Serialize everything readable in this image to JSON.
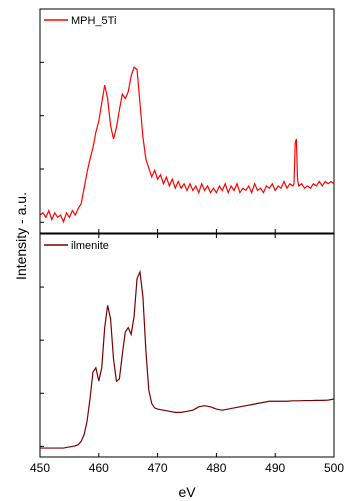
{
  "chart_data": {
    "type": "line",
    "xlabel": "eV",
    "ylabel": "Intensity - a.u.",
    "xlim": [
      450,
      500
    ],
    "xticks": [
      "450",
      "460",
      "470",
      "480",
      "490",
      "500"
    ],
    "grid": false,
    "panels": [
      {
        "legend_label": "MPH_5Ti",
        "legend_position": "top-left",
        "color": "#ff0000",
        "ylim": [
          0,
          1
        ],
        "points": [
          [
            450.0,
            0.08
          ],
          [
            450.5,
            0.09
          ],
          [
            451.0,
            0.07
          ],
          [
            451.5,
            0.1
          ],
          [
            452.0,
            0.06
          ],
          [
            452.5,
            0.09
          ],
          [
            453.0,
            0.07
          ],
          [
            453.5,
            0.08
          ],
          [
            454.0,
            0.05
          ],
          [
            454.5,
            0.09
          ],
          [
            455.0,
            0.07
          ],
          [
            455.5,
            0.1
          ],
          [
            456.0,
            0.08
          ],
          [
            456.5,
            0.11
          ],
          [
            457.0,
            0.13
          ],
          [
            457.5,
            0.2
          ],
          [
            458.0,
            0.27
          ],
          [
            458.5,
            0.33
          ],
          [
            459.0,
            0.38
          ],
          [
            459.5,
            0.45
          ],
          [
            460.0,
            0.5
          ],
          [
            460.5,
            0.58
          ],
          [
            461.0,
            0.66
          ],
          [
            461.5,
            0.6
          ],
          [
            462.0,
            0.48
          ],
          [
            462.5,
            0.42
          ],
          [
            463.0,
            0.47
          ],
          [
            463.5,
            0.55
          ],
          [
            464.0,
            0.62
          ],
          [
            464.5,
            0.6
          ],
          [
            465.0,
            0.63
          ],
          [
            465.5,
            0.7
          ],
          [
            466.0,
            0.74
          ],
          [
            466.5,
            0.73
          ],
          [
            467.0,
            0.58
          ],
          [
            467.5,
            0.43
          ],
          [
            468.0,
            0.33
          ],
          [
            468.5,
            0.29
          ],
          [
            469.0,
            0.25
          ],
          [
            469.5,
            0.28
          ],
          [
            470.0,
            0.24
          ],
          [
            470.5,
            0.26
          ],
          [
            471.0,
            0.22
          ],
          [
            471.5,
            0.25
          ],
          [
            472.0,
            0.21
          ],
          [
            472.5,
            0.24
          ],
          [
            473.0,
            0.2
          ],
          [
            473.5,
            0.23
          ],
          [
            474.0,
            0.2
          ],
          [
            474.5,
            0.22
          ],
          [
            475.0,
            0.19
          ],
          [
            475.5,
            0.22
          ],
          [
            476.0,
            0.19
          ],
          [
            476.5,
            0.21
          ],
          [
            477.0,
            0.18
          ],
          [
            477.5,
            0.22
          ],
          [
            478.0,
            0.19
          ],
          [
            478.5,
            0.21
          ],
          [
            479.0,
            0.18
          ],
          [
            479.5,
            0.2
          ],
          [
            480.0,
            0.18
          ],
          [
            480.5,
            0.21
          ],
          [
            481.0,
            0.19
          ],
          [
            481.5,
            0.22
          ],
          [
            482.0,
            0.18
          ],
          [
            482.5,
            0.21
          ],
          [
            483.0,
            0.19
          ],
          [
            483.5,
            0.22
          ],
          [
            484.0,
            0.18
          ],
          [
            484.5,
            0.2
          ],
          [
            485.0,
            0.19
          ],
          [
            485.5,
            0.21
          ],
          [
            486.0,
            0.18
          ],
          [
            486.5,
            0.22
          ],
          [
            487.0,
            0.19
          ],
          [
            487.5,
            0.2
          ],
          [
            488.0,
            0.18
          ],
          [
            488.5,
            0.21
          ],
          [
            489.0,
            0.2
          ],
          [
            489.5,
            0.22
          ],
          [
            490.0,
            0.19
          ],
          [
            490.5,
            0.21
          ],
          [
            491.0,
            0.2
          ],
          [
            491.5,
            0.23
          ],
          [
            492.0,
            0.2
          ],
          [
            492.5,
            0.22
          ],
          [
            493.0,
            0.21
          ],
          [
            493.2,
            0.22
          ],
          [
            493.4,
            0.4
          ],
          [
            493.6,
            0.42
          ],
          [
            493.8,
            0.24
          ],
          [
            494.0,
            0.21
          ],
          [
            494.5,
            0.22
          ],
          [
            495.0,
            0.2
          ],
          [
            495.5,
            0.21
          ],
          [
            496.0,
            0.2
          ],
          [
            496.5,
            0.22
          ],
          [
            497.0,
            0.21
          ],
          [
            497.5,
            0.23
          ],
          [
            498.0,
            0.21
          ],
          [
            498.5,
            0.23
          ],
          [
            499.0,
            0.22
          ],
          [
            499.5,
            0.23
          ],
          [
            500.0,
            0.22
          ]
        ]
      },
      {
        "legend_label": "ilmenite",
        "legend_position": "top-left",
        "color": "#7a0000",
        "ylim": [
          0,
          1
        ],
        "points": [
          [
            450.0,
            0.04
          ],
          [
            451.0,
            0.04
          ],
          [
            452.0,
            0.04
          ],
          [
            453.0,
            0.04
          ],
          [
            454.0,
            0.04
          ],
          [
            455.0,
            0.045
          ],
          [
            456.0,
            0.05
          ],
          [
            456.5,
            0.055
          ],
          [
            457.0,
            0.07
          ],
          [
            457.5,
            0.1
          ],
          [
            458.0,
            0.16
          ],
          [
            458.5,
            0.26
          ],
          [
            459.0,
            0.38
          ],
          [
            459.5,
            0.4
          ],
          [
            460.0,
            0.34
          ],
          [
            460.5,
            0.4
          ],
          [
            461.0,
            0.58
          ],
          [
            461.5,
            0.68
          ],
          [
            462.0,
            0.62
          ],
          [
            462.5,
            0.44
          ],
          [
            463.0,
            0.34
          ],
          [
            463.5,
            0.35
          ],
          [
            464.0,
            0.46
          ],
          [
            464.5,
            0.56
          ],
          [
            465.0,
            0.58
          ],
          [
            465.5,
            0.55
          ],
          [
            466.0,
            0.63
          ],
          [
            466.5,
            0.8
          ],
          [
            467.0,
            0.83
          ],
          [
            467.5,
            0.72
          ],
          [
            468.0,
            0.48
          ],
          [
            468.5,
            0.3
          ],
          [
            469.0,
            0.24
          ],
          [
            469.5,
            0.22
          ],
          [
            470.0,
            0.215
          ],
          [
            471.0,
            0.21
          ],
          [
            472.0,
            0.205
          ],
          [
            473.0,
            0.2
          ],
          [
            474.0,
            0.2
          ],
          [
            475.0,
            0.205
          ],
          [
            476.0,
            0.21
          ],
          [
            477.0,
            0.225
          ],
          [
            478.0,
            0.23
          ],
          [
            479.0,
            0.225
          ],
          [
            480.0,
            0.215
          ],
          [
            481.0,
            0.21
          ],
          [
            482.0,
            0.215
          ],
          [
            483.0,
            0.22
          ],
          [
            484.0,
            0.225
          ],
          [
            485.0,
            0.23
          ],
          [
            486.0,
            0.235
          ],
          [
            487.0,
            0.24
          ],
          [
            488.0,
            0.245
          ],
          [
            489.0,
            0.25
          ],
          [
            490.0,
            0.25
          ],
          [
            491.0,
            0.25
          ],
          [
            492.0,
            0.25
          ],
          [
            493.0,
            0.252
          ],
          [
            494.0,
            0.252
          ],
          [
            495.0,
            0.253
          ],
          [
            496.0,
            0.253
          ],
          [
            497.0,
            0.254
          ],
          [
            498.0,
            0.254
          ],
          [
            499.0,
            0.255
          ],
          [
            500.0,
            0.26
          ]
        ]
      }
    ]
  }
}
